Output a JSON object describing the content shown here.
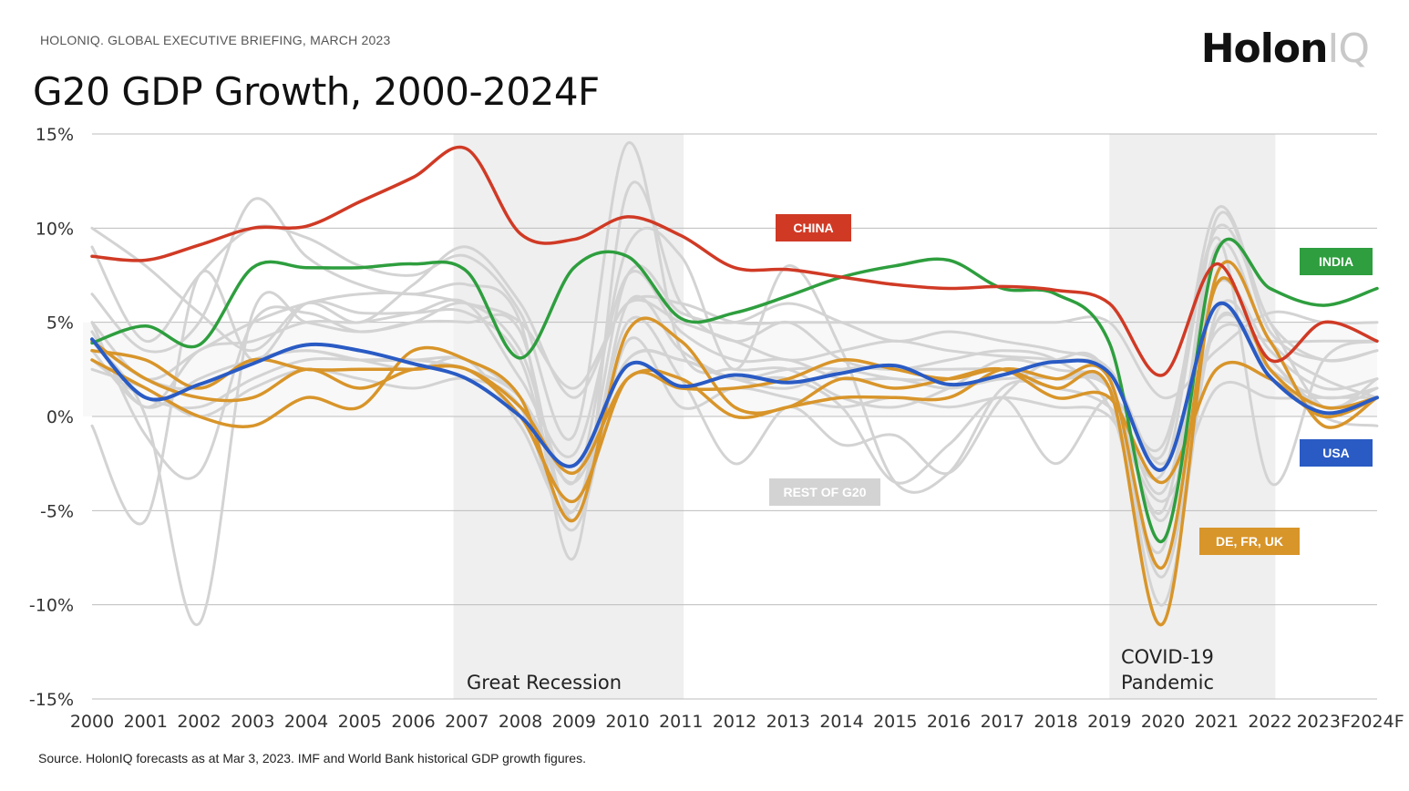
{
  "header": {
    "briefing": "HOLONIQ. GLOBAL EXECUTIVE BRIEFING, MARCH 2023",
    "logo_bold": "Holon",
    "logo_light": "IQ"
  },
  "footer": {
    "source": "Source. HolonIQ forecasts as at Mar 3, 2023. IMF and World Bank historical GDP growth figures."
  },
  "chart_data": {
    "type": "line",
    "title": "G20 GDP Growth, 2000-2024F",
    "xlabel": "",
    "ylabel": "",
    "ylim": [
      -15,
      15
    ],
    "y_ticks": [
      15,
      10,
      5,
      0,
      -5,
      -10,
      -15
    ],
    "y_tick_labels": [
      "15%",
      "10%",
      "5%",
      "0%",
      "-5%",
      "-10%",
      "-15%"
    ],
    "categories": [
      "2000",
      "2001",
      "2002",
      "2003",
      "2004",
      "2005",
      "2006",
      "2007",
      "2008",
      "2009",
      "2010",
      "2011",
      "2012",
      "2013",
      "2014",
      "2015",
      "2016",
      "2017",
      "2018",
      "2019",
      "2020",
      "2021",
      "2022",
      "2023F",
      "2024F"
    ],
    "grid": "horizontal",
    "shaded_periods": [
      {
        "label": "Great Recession",
        "start": 2006.75,
        "end": 2011.05
      },
      {
        "label": "COVID-19 Pandemic",
        "label_lines": [
          "COVID-19",
          "Pandemic"
        ],
        "start": 2019.0,
        "end": 2022.1
      }
    ],
    "highlight_colors": {
      "china": "#d03a25",
      "india": "#2e9e3e",
      "usa": "#2a5bc4",
      "europe": "#d8952a",
      "rest": "#d3d3d3"
    },
    "tags": {
      "china": "CHINA",
      "india": "INDIA",
      "usa": "USA",
      "europe": "DE, FR, UK",
      "rest": "REST OF G20"
    },
    "series": [
      {
        "group": "rest",
        "values": [
          10,
          8,
          5.5,
          3.5,
          6,
          5,
          7,
          9,
          6,
          1,
          6,
          5,
          4,
          3,
          3.5,
          4,
          3.5,
          3.2,
          3,
          2.5,
          -2,
          11,
          5,
          3,
          3.5
        ]
      },
      {
        "group": "rest",
        "values": [
          9,
          4,
          7.5,
          10,
          9.5,
          8,
          7.5,
          8.5,
          5.5,
          -1,
          14.5,
          3.5,
          2.5,
          2.5,
          1,
          0.5,
          1.5,
          3,
          2.5,
          1.5,
          -5,
          9,
          4,
          2,
          1
        ]
      },
      {
        "group": "rest",
        "values": [
          6.5,
          3.5,
          5,
          11.5,
          8.5,
          7,
          6.5,
          7,
          5,
          -7.5,
          12,
          6,
          4,
          5,
          3,
          2.5,
          3,
          3.5,
          3,
          0.5,
          -7,
          10.5,
          4.5,
          3,
          3.5
        ]
      },
      {
        "group": "rest",
        "values": [
          5,
          2,
          3.5,
          5,
          6,
          6.5,
          6.5,
          6,
          5,
          1.5,
          6,
          6,
          5,
          5,
          5,
          5,
          5,
          5,
          5,
          5,
          1,
          3.5,
          5.5,
          5,
          5
        ]
      },
      {
        "group": "rest",
        "values": [
          4,
          0,
          -11,
          5.5,
          5,
          4.5,
          5,
          6,
          3.5,
          -3.5,
          9,
          8.5,
          2.5,
          8,
          3.5,
          -3.5,
          -3,
          1.5,
          1.5,
          0.5,
          -3,
          9.5,
          -3.5,
          3,
          4
        ]
      },
      {
        "group": "rest",
        "values": [
          -0.5,
          -5.5,
          7.5,
          3,
          6,
          5.5,
          5.5,
          5.5,
          3,
          -5,
          7.5,
          5.5,
          5,
          6,
          5,
          4,
          4.5,
          4,
          3.5,
          2.5,
          -2.5,
          4.5,
          4,
          4,
          4
        ]
      },
      {
        "group": "rest",
        "values": [
          2.5,
          1.5,
          0,
          1.5,
          2.5,
          2,
          1.5,
          2,
          0.5,
          -6,
          4,
          0.5,
          1.5,
          1,
          0.5,
          1,
          0.5,
          1,
          0.5,
          0,
          -4.5,
          1.5,
          1,
          1,
          1
        ]
      },
      {
        "group": "rest",
        "values": [
          5,
          -1,
          -3,
          5,
          5.5,
          4.5,
          5,
          5,
          4.5,
          -5.5,
          6,
          3.5,
          2,
          2,
          0.5,
          -3.5,
          -1.5,
          1,
          -2.5,
          1,
          -1.5,
          10,
          5,
          0.5,
          2
        ]
      },
      {
        "group": "rest",
        "values": [
          3,
          1,
          0.5,
          2,
          3,
          3,
          3,
          2.5,
          1,
          -3.5,
          3,
          3,
          2,
          2.5,
          2.5,
          2,
          2,
          2.5,
          2,
          1.5,
          -8.5,
          5,
          2.5,
          1,
          1.5
        ]
      },
      {
        "group": "rest",
        "values": [
          4,
          2,
          1.5,
          3,
          3.5,
          3,
          2.5,
          3,
          -0.5,
          -5,
          5,
          2,
          -2.5,
          0.5,
          -1.5,
          -1,
          -3,
          1,
          3,
          2,
          -10,
          5.5,
          3,
          0.5,
          1.5
        ]
      },
      {
        "group": "rest",
        "values": [
          4.5,
          0.5,
          3.5,
          4,
          5,
          5,
          5.5,
          6,
          2,
          -2,
          7.5,
          4.5,
          3,
          3,
          2,
          2,
          1.5,
          2,
          2,
          1.5,
          -4,
          7,
          3.5,
          1.5,
          2
        ]
      },
      {
        "group": "rest",
        "values": [
          3.5,
          0.5,
          2,
          3,
          3.5,
          3,
          3,
          3,
          1,
          -3,
          3,
          3,
          2,
          1.5,
          2.5,
          2.5,
          2.5,
          2.5,
          2,
          1.5,
          -5.5,
          5,
          3,
          0,
          -0.5
        ]
      },
      {
        "group": "europe",
        "name": "DE",
        "values": [
          3,
          1.5,
          0,
          -0.5,
          1,
          0.5,
          3.5,
          3,
          1,
          -5.5,
          4.5,
          4,
          0.5,
          0.5,
          2,
          1.5,
          2,
          2.5,
          1,
          1,
          -3.5,
          2.5,
          2,
          0,
          1
        ]
      },
      {
        "group": "europe",
        "name": "FR",
        "values": [
          4,
          2,
          1,
          1,
          2.5,
          1.5,
          2.5,
          2.5,
          0.5,
          -3,
          2,
          2,
          0,
          0.5,
          1,
          1,
          1,
          2.5,
          2,
          2,
          -8,
          7,
          2.5,
          0.5,
          1
        ]
      },
      {
        "group": "europe",
        "name": "UK",
        "values": [
          3.5,
          3,
          1.5,
          3,
          2.5,
          2.5,
          2.5,
          2.5,
          0,
          -4.5,
          2,
          1.5,
          1.5,
          2,
          3,
          2.5,
          2,
          2.5,
          1.5,
          1.5,
          -11,
          7.5,
          4,
          -0.5,
          1
        ]
      },
      {
        "group": "usa",
        "name": "USA",
        "values": [
          4.1,
          1,
          1.7,
          2.8,
          3.8,
          3.5,
          2.8,
          2,
          0,
          -2.6,
          2.7,
          1.6,
          2.2,
          1.8,
          2.3,
          2.7,
          1.7,
          2.2,
          2.9,
          2.3,
          -2.8,
          5.9,
          2.1,
          0.2,
          1
        ]
      },
      {
        "group": "india",
        "name": "India",
        "values": [
          3.9,
          4.8,
          3.8,
          7.9,
          7.9,
          7.9,
          8.1,
          7.7,
          3.1,
          7.9,
          8.5,
          5.2,
          5.5,
          6.4,
          7.4,
          8,
          8.3,
          6.8,
          6.5,
          3.9,
          -6.6,
          8.7,
          6.8,
          5.9,
          6.8
        ]
      },
      {
        "group": "china",
        "name": "China",
        "values": [
          8.5,
          8.3,
          9.1,
          10,
          10.1,
          11.4,
          12.7,
          14.2,
          9.7,
          9.4,
          10.6,
          9.6,
          7.9,
          7.8,
          7.4,
          7,
          6.8,
          6.9,
          6.7,
          6,
          2.2,
          8.1,
          3,
          5,
          4
        ]
      }
    ]
  }
}
